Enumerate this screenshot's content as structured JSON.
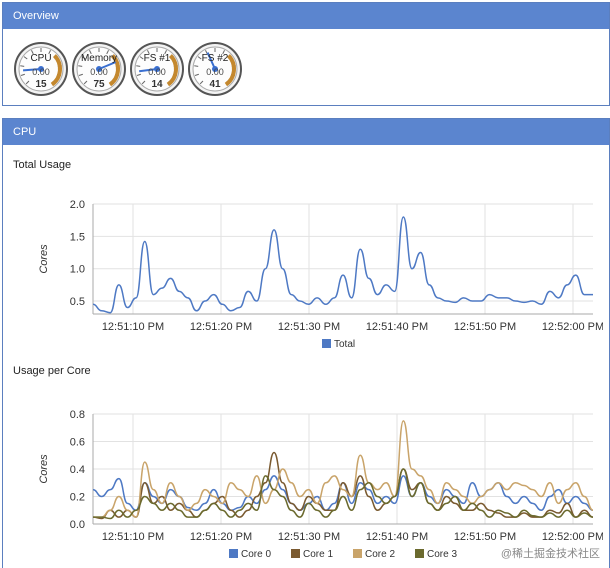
{
  "overview": {
    "title": "Overview",
    "gauges": [
      {
        "label": "CPU",
        "center": "0.00",
        "value": "15",
        "fill": 0.15
      },
      {
        "label": "Memory",
        "center": "0.00",
        "value": "75",
        "fill": 0.75
      },
      {
        "label": "FS #1",
        "center": "0.00",
        "value": "14",
        "fill": 0.14
      },
      {
        "label": "FS #2",
        "center": "0.00",
        "value": "41",
        "fill": 0.41
      }
    ]
  },
  "cpu": {
    "title": "CPU",
    "total_usage_title": "Total Usage",
    "per_core_title": "Usage per Core"
  },
  "colors": {
    "header": "#5b85cf",
    "total": "#4e79c4",
    "core0": "#4e79c4",
    "core1": "#7a5a30",
    "core2": "#c9a46a",
    "core3": "#6b6a2e"
  },
  "chart_data": [
    {
      "type": "line",
      "title": "Total Usage",
      "ylabel": "Cores",
      "ylim": [
        0.3,
        2.0
      ],
      "yticks": [
        "0.5",
        "1.0",
        "1.5",
        "2.0"
      ],
      "xticks": [
        "12:51:10 PM",
        "12:51:20 PM",
        "12:51:30 PM",
        "12:51:40 PM",
        "12:51:50 PM",
        "12:52:00 PM"
      ],
      "x": [
        0,
        1,
        2,
        3,
        4,
        5,
        6,
        7,
        8,
        9,
        10,
        11,
        12,
        13,
        14,
        15,
        16,
        17,
        18,
        19,
        20,
        21,
        22,
        23,
        24,
        25,
        26,
        27,
        28,
        29,
        30,
        31,
        32,
        33,
        34,
        35,
        36,
        37,
        38,
        39,
        40,
        41,
        42,
        43,
        44,
        45,
        46,
        47,
        48,
        49,
        50,
        51,
        52,
        53,
        54,
        55,
        56,
        57,
        58
      ],
      "series": [
        {
          "name": "Total",
          "values": [
            0.45,
            0.35,
            0.32,
            0.75,
            0.4,
            0.55,
            1.42,
            0.6,
            0.7,
            0.85,
            0.65,
            0.55,
            0.35,
            0.5,
            0.6,
            0.45,
            0.35,
            0.4,
            0.65,
            0.5,
            1.0,
            1.6,
            1.0,
            0.6,
            0.5,
            0.45,
            0.55,
            0.45,
            0.55,
            0.9,
            0.55,
            1.3,
            0.85,
            0.6,
            0.75,
            0.65,
            1.8,
            1.0,
            1.25,
            0.75,
            0.55,
            0.5,
            0.48,
            0.55,
            0.5,
            0.5,
            0.6,
            0.55,
            0.55,
            0.5,
            0.48,
            0.5,
            0.45,
            0.65,
            0.55,
            0.75,
            0.9,
            0.6,
            0.6
          ]
        }
      ],
      "legend": [
        "Total"
      ]
    },
    {
      "type": "line",
      "title": "Usage per Core",
      "ylabel": "Cores",
      "ylim": [
        0.0,
        0.8
      ],
      "yticks": [
        "0.0",
        "0.2",
        "0.4",
        "0.6",
        "0.8"
      ],
      "xticks": [
        "12:51:10 PM",
        "12:51:20 PM",
        "12:51:30 PM",
        "12:51:40 PM",
        "12:51:50 PM",
        "12:52:00 PM"
      ],
      "x": [
        0,
        1,
        2,
        3,
        4,
        5,
        6,
        7,
        8,
        9,
        10,
        11,
        12,
        13,
        14,
        15,
        16,
        17,
        18,
        19,
        20,
        21,
        22,
        23,
        24,
        25,
        26,
        27,
        28,
        29,
        30,
        31,
        32,
        33,
        34,
        35,
        36,
        37,
        38,
        39,
        40,
        41,
        42,
        43,
        44,
        45,
        46,
        47,
        48,
        49,
        50,
        51,
        52,
        53,
        54,
        55,
        56,
        57,
        58
      ],
      "series": [
        {
          "name": "Core 0",
          "values": [
            0.25,
            0.2,
            0.25,
            0.33,
            0.15,
            0.1,
            0.3,
            0.2,
            0.15,
            0.25,
            0.2,
            0.12,
            0.1,
            0.15,
            0.25,
            0.15,
            0.1,
            0.12,
            0.2,
            0.15,
            0.25,
            0.35,
            0.25,
            0.15,
            0.1,
            0.15,
            0.2,
            0.1,
            0.15,
            0.3,
            0.15,
            0.3,
            0.25,
            0.15,
            0.2,
            0.15,
            0.35,
            0.2,
            0.3,
            0.2,
            0.15,
            0.25,
            0.2,
            0.15,
            0.3,
            0.2,
            0.25,
            0.3,
            0.2,
            0.15,
            0.2,
            0.15,
            0.1,
            0.2,
            0.25,
            0.15,
            0.2,
            0.15,
            0.1
          ]
        },
        {
          "name": "Core 1",
          "values": [
            0.05,
            0.04,
            0.1,
            0.05,
            0.1,
            0.05,
            0.3,
            0.15,
            0.2,
            0.1,
            0.15,
            0.1,
            0.05,
            0.1,
            0.15,
            0.2,
            0.1,
            0.05,
            0.1,
            0.2,
            0.3,
            0.52,
            0.3,
            0.15,
            0.1,
            0.2,
            0.15,
            0.1,
            0.1,
            0.3,
            0.2,
            0.35,
            0.2,
            0.1,
            0.15,
            0.2,
            0.4,
            0.25,
            0.3,
            0.15,
            0.1,
            0.2,
            0.15,
            0.1,
            0.1,
            0.15,
            0.1,
            0.08,
            0.05,
            0.05,
            0.08,
            0.05,
            0.05,
            0.1,
            0.08,
            0.15,
            0.05,
            0.1,
            0.05
          ]
        },
        {
          "name": "Core 2",
          "values": [
            0.05,
            0.05,
            0.1,
            0.2,
            0.1,
            0.05,
            0.45,
            0.25,
            0.15,
            0.3,
            0.2,
            0.1,
            0.15,
            0.25,
            0.2,
            0.15,
            0.3,
            0.25,
            0.2,
            0.35,
            0.15,
            0.25,
            0.4,
            0.3,
            0.2,
            0.25,
            0.15,
            0.3,
            0.35,
            0.25,
            0.2,
            0.5,
            0.3,
            0.25,
            0.3,
            0.2,
            0.75,
            0.4,
            0.35,
            0.25,
            0.15,
            0.3,
            0.25,
            0.2,
            0.15,
            0.2,
            0.25,
            0.3,
            0.25,
            0.3,
            0.28,
            0.25,
            0.2,
            0.3,
            0.15,
            0.25,
            0.3,
            0.2,
            0.1
          ]
        },
        {
          "name": "Core 3",
          "values": [
            0.05,
            0.05,
            0.04,
            0.1,
            0.05,
            0.1,
            0.2,
            0.15,
            0.1,
            0.15,
            0.1,
            0.05,
            0.05,
            0.1,
            0.15,
            0.1,
            0.05,
            0.1,
            0.15,
            0.1,
            0.35,
            0.25,
            0.2,
            0.1,
            0.05,
            0.15,
            0.1,
            0.05,
            0.1,
            0.2,
            0.1,
            0.25,
            0.3,
            0.2,
            0.15,
            0.2,
            0.4,
            0.2,
            0.3,
            0.15,
            0.1,
            0.15,
            0.2,
            0.1,
            0.15,
            0.1,
            0.05,
            0.1,
            0.08,
            0.05,
            0.1,
            0.06,
            0.05,
            0.08,
            0.05,
            0.1,
            0.05,
            0.08,
            0.05
          ]
        }
      ],
      "legend": [
        "Core 0",
        "Core 1",
        "Core 2",
        "Core 3"
      ]
    }
  ],
  "watermark": "@稀土掘金技术社区"
}
